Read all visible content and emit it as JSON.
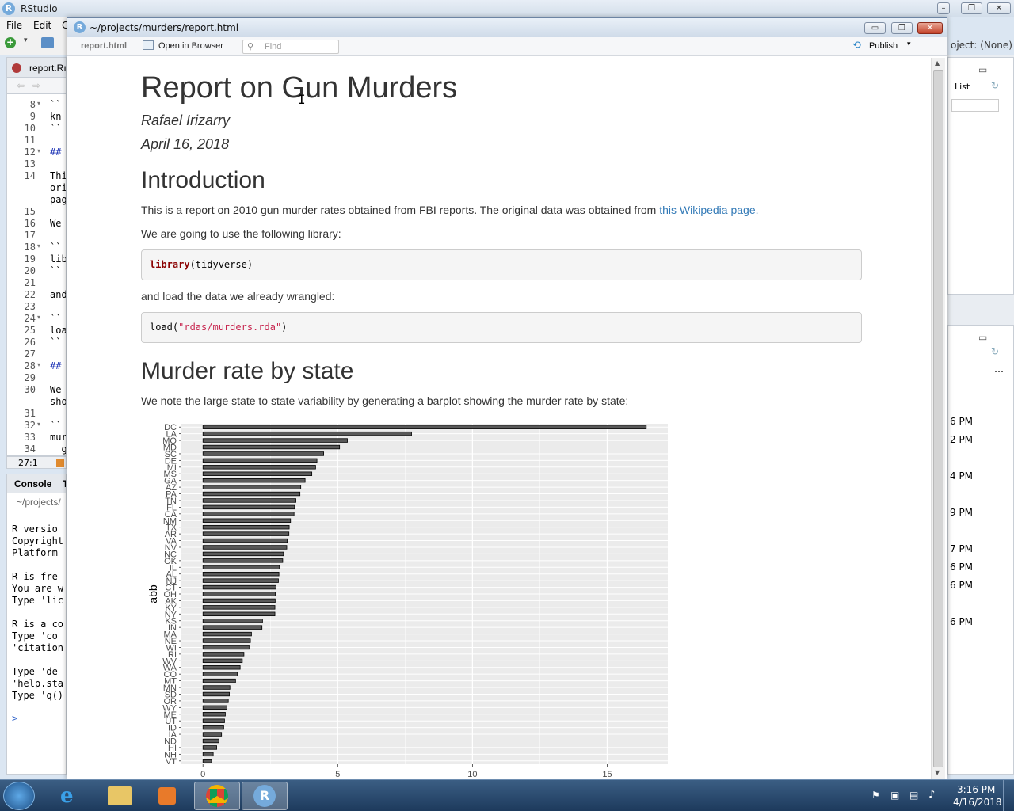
{
  "rstudio": {
    "title": "RStudio",
    "menus": [
      "File",
      "Edit",
      "C"
    ],
    "editor_tab": "report.Rı",
    "lines": [
      {
        "n": "8",
        "fold": true,
        "code": "``"
      },
      {
        "n": "9",
        "fold": false,
        "code": "kn"
      },
      {
        "n": "10",
        "fold": false,
        "code": "``"
      },
      {
        "n": "11",
        "fold": false,
        "code": ""
      },
      {
        "n": "12",
        "fold": true,
        "code": "##"
      },
      {
        "n": "13",
        "fold": false,
        "code": ""
      },
      {
        "n": "14",
        "fold": false,
        "code": "Thi\nori\npag"
      },
      {
        "n": "15",
        "fold": false,
        "code": ""
      },
      {
        "n": "16",
        "fold": false,
        "code": "We"
      },
      {
        "n": "17",
        "fold": false,
        "code": ""
      },
      {
        "n": "18",
        "fold": true,
        "code": "``"
      },
      {
        "n": "19",
        "fold": false,
        "code": "lib"
      },
      {
        "n": "20",
        "fold": false,
        "code": "``"
      },
      {
        "n": "21",
        "fold": false,
        "code": ""
      },
      {
        "n": "22",
        "fold": false,
        "code": "and"
      },
      {
        "n": "23",
        "fold": false,
        "code": ""
      },
      {
        "n": "24",
        "fold": true,
        "code": "``"
      },
      {
        "n": "25",
        "fold": false,
        "code": "loa"
      },
      {
        "n": "26",
        "fold": false,
        "code": "``"
      },
      {
        "n": "27",
        "fold": false,
        "code": ""
      },
      {
        "n": "28",
        "fold": true,
        "code": "##"
      },
      {
        "n": "29",
        "fold": false,
        "code": ""
      },
      {
        "n": "30",
        "fold": false,
        "code": "We\nsho"
      },
      {
        "n": "31",
        "fold": false,
        "code": ""
      },
      {
        "n": "32",
        "fold": true,
        "code": "``"
      },
      {
        "n": "33",
        "fold": false,
        "code": "mur"
      },
      {
        "n": "34",
        "fold": false,
        "code": "  g"
      }
    ],
    "cursor_pos": "27:1",
    "console_tab": "Console",
    "console_tab2": "T",
    "console_path": "~/projects/",
    "console_lines": [
      "R versio",
      "Copyright",
      "Platform",
      "",
      "R is fre",
      "You are w",
      "Type 'lic",
      "",
      "R is a co",
      "Type 'co",
      "'citation",
      "",
      "Type 'de",
      "'help.sta",
      "Type 'q()"
    ],
    "prompt": ">",
    "project": "oject: (None)",
    "env_list": "List",
    "times": [
      "6 PM",
      "2 PM",
      "4 PM",
      "9 PM",
      "7 PM",
      "6 PM",
      "6 PM",
      "6 PM"
    ]
  },
  "viewer": {
    "title": "~/projects/murders/report.html",
    "file_label": "report.html",
    "open_browser": "Open in Browser",
    "find_placeholder": "Find",
    "publish": "Publish"
  },
  "report": {
    "title": "Report on Gun Murders",
    "author": "Rafael Irizarry",
    "date": "April 16, 2018",
    "intro_heading": "Introduction",
    "intro_text": "This is a report on 2010 gun murder rates obtained from FBI reports. The original data was obtained from",
    "intro_link": "this Wikipedia page.",
    "library_text": "We are going to use the following library:",
    "code1_fn": "library",
    "code1_arg": "(tidyverse)",
    "load_text": "and load the data we already wrangled:",
    "code2_fn": "load(",
    "code2_str": "\"rdas/murders.rda\"",
    "code2_end": ")",
    "section_heading": "Murder rate by state",
    "section_text": "We note the large state to state variability by generating a barplot showing the murder rate by state:"
  },
  "chart_data": {
    "type": "bar",
    "orientation": "horizontal",
    "ylabel": "abb",
    "xlabel": "",
    "categories": [
      "DC",
      "LA",
      "MO",
      "MD",
      "SC",
      "DE",
      "MI",
      "MS",
      "GA",
      "AZ",
      "PA",
      "TN",
      "FL",
      "CA",
      "NM",
      "TX",
      "AR",
      "VA",
      "NV",
      "NC",
      "OK",
      "IL",
      "AL",
      "NJ",
      "CT",
      "OH",
      "AK",
      "KY",
      "NY",
      "KS",
      "IN",
      "MA",
      "NE",
      "WI",
      "RI",
      "WV",
      "WA",
      "CO",
      "MT",
      "MN",
      "SD",
      "OR",
      "WY",
      "ME",
      "UT",
      "ID",
      "IA",
      "ND",
      "HI",
      "NH",
      "VT"
    ],
    "values": [
      16.45,
      7.74,
      5.36,
      5.07,
      4.48,
      4.23,
      4.18,
      4.04,
      3.79,
      3.63,
      3.6,
      3.45,
      3.4,
      3.38,
      3.25,
      3.2,
      3.19,
      3.13,
      3.11,
      2.99,
      2.96,
      2.84,
      2.82,
      2.8,
      2.71,
      2.69,
      2.68,
      2.67,
      2.67,
      2.21,
      2.19,
      1.8,
      1.76,
      1.71,
      1.52,
      1.46,
      1.38,
      1.28,
      1.21,
      1.0,
      0.98,
      0.94,
      0.89,
      0.83,
      0.8,
      0.77,
      0.69,
      0.59,
      0.51,
      0.38,
      0.32
    ],
    "x_ticks": [
      0,
      5,
      10,
      15
    ],
    "xlim": [
      -0.8,
      17.25
    ],
    "grid": true
  },
  "taskbar": {
    "time": "3:16 PM",
    "date": "4/16/2018"
  }
}
